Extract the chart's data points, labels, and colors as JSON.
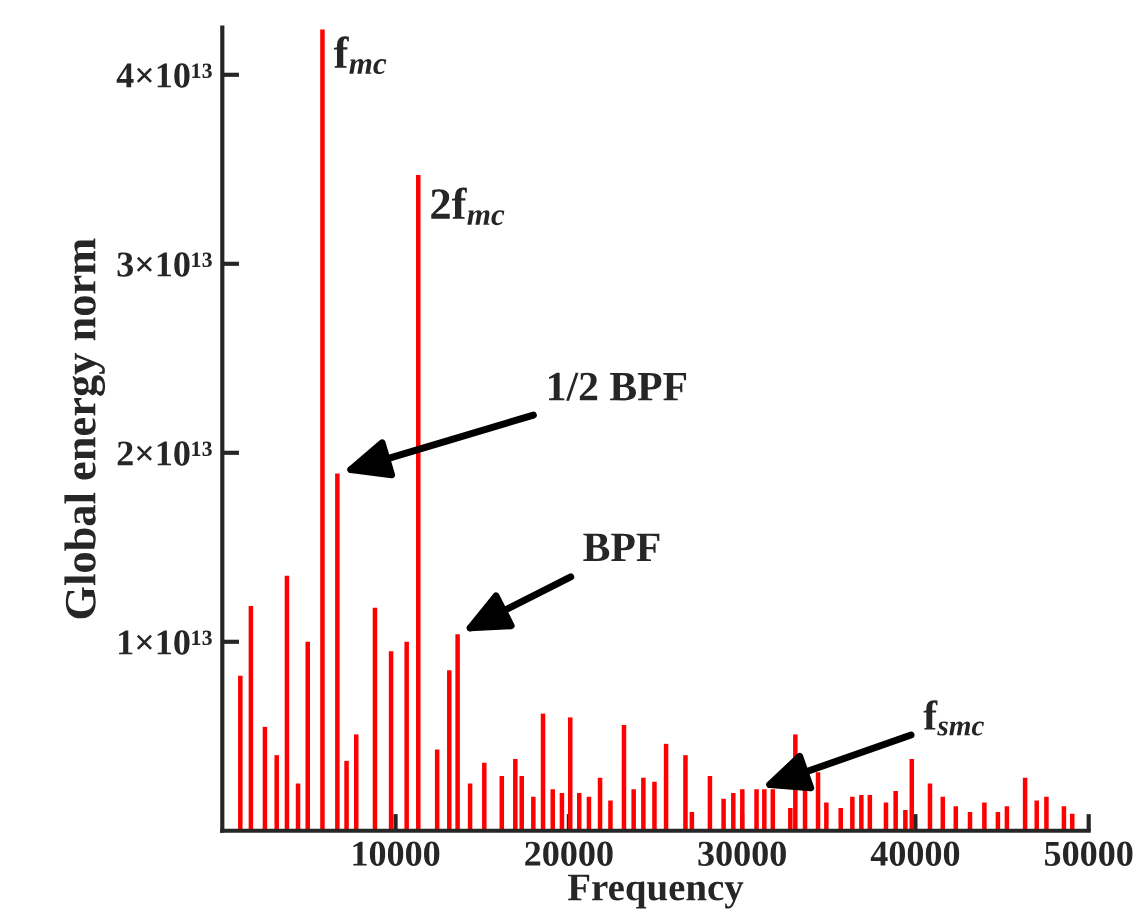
{
  "chart_data": {
    "type": "bar",
    "xlabel": "Frequency",
    "ylabel": "Global energy norm",
    "color": "#ff0000",
    "x": [
      1040,
      1650,
      2460,
      3140,
      3730,
      4370,
      4930,
      5780,
      6640,
      7170,
      7730,
      8810,
      9740,
      10640,
      11310,
      12400,
      13100,
      13580,
      14300,
      15120,
      16130,
      16910,
      17280,
      17950,
      18510,
      19070,
      19600,
      20080,
      20600,
      21160,
      21800,
      22400,
      23180,
      23740,
      24300,
      24940,
      25610,
      26730,
      27100,
      28140,
      28930,
      29490,
      30010,
      30830,
      31280,
      31770,
      32780,
      33070,
      33630,
      34380,
      34860,
      35690,
      36360,
      36880,
      37370,
      38300,
      38860,
      39420,
      39790,
      40840,
      41580,
      42330,
      43150,
      43980,
      44760,
      45280,
      46330,
      47000,
      47560,
      48570,
      49050
    ],
    "values": [
      8200000000000.0,
      11900000000000.0,
      5500000000000.0,
      4000000000000.0,
      13500000000000.0,
      2500000000000.0,
      10000000000000.0,
      42400000000000.0,
      18900000000000.0,
      3700000000000.0,
      5100000000000.0,
      11800000000000.0,
      9500000000000.0,
      10000000000000.0,
      34700000000000.0,
      4300000000000.0,
      8500000000000.0,
      10400000000000.0,
      2500000000000.0,
      3600000000000.0,
      2900000000000.0,
      3800000000000.0,
      2900000000000.0,
      1800000000000.0,
      6200000000000.0,
      2200000000000.0,
      2000000000000.0,
      6000000000000.0,
      2000000000000.0,
      1800000000000.0,
      2800000000000.0,
      1600000000000.0,
      5600000000000.0,
      2200000000000.0,
      2800000000000.0,
      2600000000000.0,
      4600000000000.0,
      4000000000000.0,
      1000000000000.0,
      2900000000000.0,
      1700000000000.0,
      2000000000000.0,
      2200000000000.0,
      2200000000000.0,
      2200000000000.0,
      2200000000000.0,
      1200000000000.0,
      5100000000000.0,
      2200000000000.0,
      3100000000000.0,
      1500000000000.0,
      1200000000000.0,
      1800000000000.0,
      1900000000000.0,
      1900000000000.0,
      1500000000000.0,
      2100000000000.0,
      1100000000000.0,
      3800000000000.0,
      2500000000000.0,
      1800000000000.0,
      1300000000000.0,
      1000000000000.0,
      1500000000000.0,
      1000000000000.0,
      1300000000000.0,
      2800000000000.0,
      1600000000000.0,
      1800000000000.0,
      1300000000000.0,
      900000000000.0
    ],
    "xlim": [
      0,
      50000
    ],
    "xticks": [
      10000,
      20000,
      30000,
      40000,
      50000
    ],
    "ylim": [
      0,
      42500000000000.0
    ],
    "yticks": [
      {
        "value": 10000000000000.0,
        "label": "1×10¹³"
      },
      {
        "value": 20000000000000.0,
        "label": "2×10¹³"
      },
      {
        "value": 30000000000000.0,
        "label": "3×10¹³"
      },
      {
        "value": 40000000000000.0,
        "label": "4×10¹³"
      }
    ],
    "grid": false,
    "legend": false,
    "annotations": [
      {
        "text": "f$_{mc}$",
        "x": 5780,
        "y": 42400000000000.0
      },
      {
        "text": "2f$_{mc}$",
        "x": 11310,
        "y": 34700000000000.0
      },
      {
        "text": "1/2 BPF",
        "x": 6640,
        "y": 18900000000000.0
      },
      {
        "text": "BPF",
        "x": 13580,
        "y": 10400000000000.0
      },
      {
        "text": "f$_{smc}$",
        "x": 30830,
        "y": 2200000000000.0
      }
    ]
  }
}
